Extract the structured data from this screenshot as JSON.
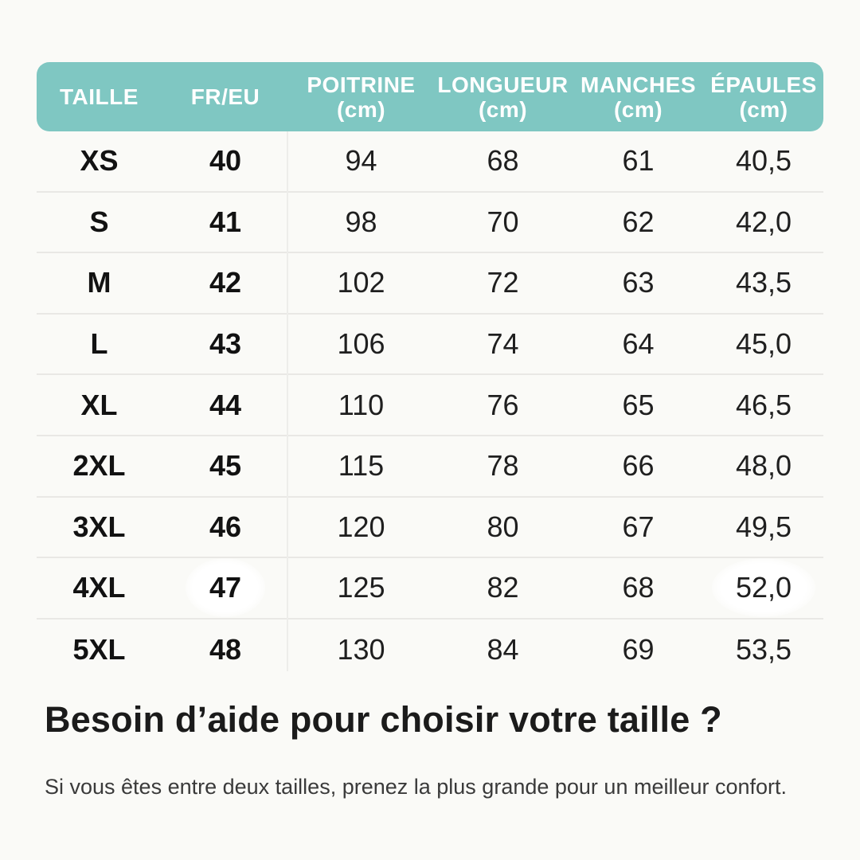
{
  "colors": {
    "background": "#fafaf7",
    "header_bg": "#7fc7c2",
    "header_text": "#ffffff",
    "row_divider": "#e9e8e5",
    "column_divider": "#ededea",
    "text_dark": "#1b1b1b"
  },
  "chart_data": {
    "type": "table",
    "title": "",
    "columns": [
      {
        "key": "taille",
        "label": "TAILLE",
        "sub": "",
        "bold": true
      },
      {
        "key": "fr_eu",
        "label": "FR/EU",
        "sub": "",
        "bold": true
      },
      {
        "key": "poitrine",
        "label": "POITRINE",
        "sub": "(cm)",
        "bold": false
      },
      {
        "key": "longueur",
        "label": "LONGUEUR",
        "sub": "(cm)",
        "bold": false
      },
      {
        "key": "manches",
        "label": "MANCHES",
        "sub": "(cm)",
        "bold": false
      },
      {
        "key": "epaules",
        "label": "ÉPAULES",
        "sub": "(cm)",
        "bold": false
      }
    ],
    "rows": [
      {
        "taille": "XS",
        "fr_eu": "40",
        "poitrine": "94",
        "longueur": "68",
        "manches": "61",
        "epaules": "40,5"
      },
      {
        "taille": "S",
        "fr_eu": "41",
        "poitrine": "98",
        "longueur": "70",
        "manches": "62",
        "epaules": "42,0"
      },
      {
        "taille": "M",
        "fr_eu": "42",
        "poitrine": "102",
        "longueur": "72",
        "manches": "63",
        "epaules": "43,5"
      },
      {
        "taille": "L",
        "fr_eu": "43",
        "poitrine": "106",
        "longueur": "74",
        "manches": "64",
        "epaules": "45,0"
      },
      {
        "taille": "XL",
        "fr_eu": "44",
        "poitrine": "110",
        "longueur": "76",
        "manches": "65",
        "epaules": "46,5"
      },
      {
        "taille": "2XL",
        "fr_eu": "45",
        "poitrine": "115",
        "longueur": "78",
        "manches": "66",
        "epaules": "48,0"
      },
      {
        "taille": "3XL",
        "fr_eu": "46",
        "poitrine": "120",
        "longueur": "80",
        "manches": "67",
        "epaules": "49,5"
      },
      {
        "taille": "4XL",
        "fr_eu": "47",
        "poitrine": "125",
        "longueur": "82",
        "manches": "68",
        "epaules": "52,0",
        "highlight": [
          "fr_eu",
          "epaules"
        ]
      },
      {
        "taille": "5XL",
        "fr_eu": "48",
        "poitrine": "130",
        "longueur": "84",
        "manches": "69",
        "epaules": "53,5"
      }
    ]
  },
  "footer": {
    "heading": "Besoin d’aide pour choisir votre taille ?",
    "note": "Si vous êtes entre deux tailles, prenez la plus grande pour un meilleur confort."
  }
}
